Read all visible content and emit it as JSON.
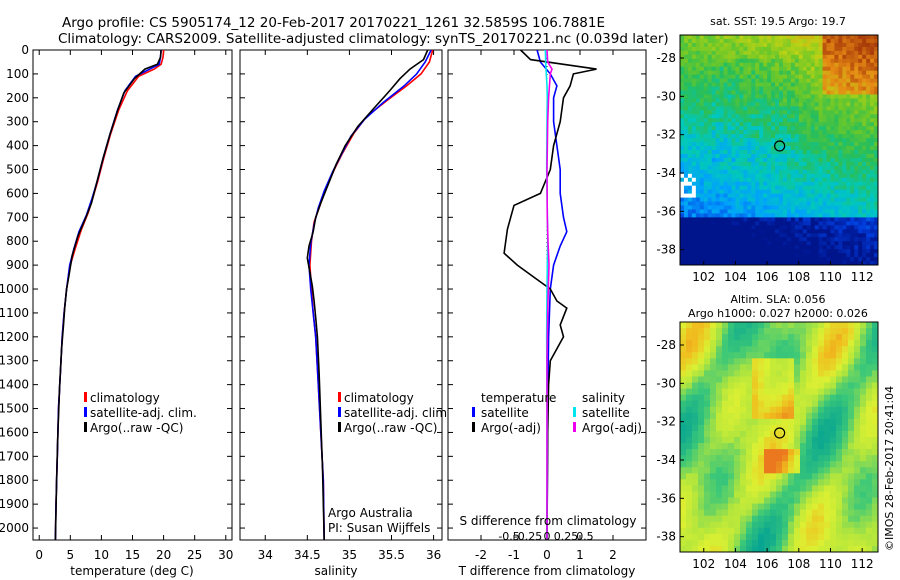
{
  "header": {
    "line1": "Argo profile: CS 5905174_12 20-Feb-2017 20170221_1261 32.5859S 106.7881E",
    "line2": "Climatology: CARS2009. Satellite-adjusted climatology: synTS_20170221.nc (0.039d later)"
  },
  "credits": {
    "institution": "Argo Australia",
    "pi": "PI: Susan Wijffels"
  },
  "watermark": "©IMOS 28-Feb-2017 20:41:04",
  "colors": {
    "climatology": "#ff0000",
    "satellite": "#0000ff",
    "argo": "#000000",
    "sat_salinity": "#00e5ee",
    "argo_adj_salinity": "#ee00ee"
  },
  "chart_data": [
    {
      "type": "line",
      "xlabel": "temperature (deg C)",
      "ylim": [
        2050,
        0
      ],
      "xlim": [
        -1,
        31
      ],
      "xticks": [
        0,
        5,
        10,
        15,
        20,
        25,
        30
      ],
      "yticks": [
        0,
        100,
        200,
        300,
        400,
        500,
        600,
        700,
        800,
        900,
        1000,
        1100,
        1200,
        1300,
        1400,
        1500,
        1600,
        1700,
        1800,
        1900,
        2000
      ],
      "legend": [
        "climatology",
        "satellite-adj. clim.",
        "Argo(..raw -QC)"
      ],
      "legend_placement": "lower-right",
      "series": [
        {
          "name": "climatology",
          "color": "#ff0000",
          "points": [
            [
              20.0,
              0
            ],
            [
              19.9,
              30
            ],
            [
              19.6,
              60
            ],
            [
              18.5,
              80
            ],
            [
              16.0,
              110
            ],
            [
              14.2,
              170
            ],
            [
              12.8,
              250
            ],
            [
              11.5,
              350
            ],
            [
              10.4,
              450
            ],
            [
              9.4,
              550
            ],
            [
              8.6,
              620
            ],
            [
              7.9,
              680
            ],
            [
              6.8,
              750
            ],
            [
              5.8,
              830
            ],
            [
              5.0,
              900
            ],
            [
              4.4,
              1000
            ],
            [
              4.0,
              1100
            ],
            [
              3.7,
              1200
            ],
            [
              3.4,
              1350
            ],
            [
              3.1,
              1500
            ],
            [
              2.9,
              1700
            ],
            [
              2.7,
              1900
            ],
            [
              2.6,
              2050
            ]
          ]
        },
        {
          "name": "satellite-adj. clim.",
          "color": "#0000ff",
          "points": [
            [
              19.6,
              0
            ],
            [
              19.5,
              30
            ],
            [
              19.3,
              60
            ],
            [
              17.8,
              80
            ],
            [
              15.5,
              110
            ],
            [
              13.8,
              170
            ],
            [
              12.6,
              250
            ],
            [
              11.4,
              350
            ],
            [
              10.3,
              450
            ],
            [
              9.3,
              550
            ],
            [
              8.5,
              620
            ],
            [
              7.6,
              690
            ],
            [
              6.4,
              760
            ],
            [
              5.6,
              830
            ],
            [
              4.9,
              900
            ],
            [
              4.4,
              1000
            ],
            [
              4.0,
              1100
            ],
            [
              3.7,
              1200
            ],
            [
              3.4,
              1350
            ],
            [
              3.1,
              1500
            ],
            [
              2.9,
              1700
            ],
            [
              2.7,
              1900
            ],
            [
              2.6,
              2050
            ]
          ]
        },
        {
          "name": "Argo(..raw -QC)",
          "color": "#000000",
          "points": [
            [
              19.6,
              0
            ],
            [
              19.5,
              30
            ],
            [
              19.0,
              60
            ],
            [
              17.0,
              80
            ],
            [
              15.3,
              120
            ],
            [
              13.6,
              180
            ],
            [
              12.5,
              260
            ],
            [
              11.3,
              360
            ],
            [
              10.2,
              460
            ],
            [
              9.2,
              560
            ],
            [
              8.4,
              640
            ],
            [
              7.5,
              700
            ],
            [
              6.2,
              780
            ],
            [
              5.3,
              860
            ],
            [
              4.8,
              940
            ],
            [
              4.4,
              1000
            ],
            [
              4.1,
              1080
            ],
            [
              3.9,
              1150
            ],
            [
              3.6,
              1250
            ],
            [
              3.3,
              1400
            ],
            [
              3.0,
              1600
            ],
            [
              2.8,
              1800
            ],
            [
              2.6,
              2050
            ]
          ]
        }
      ]
    },
    {
      "type": "line",
      "xlabel": "salinity",
      "ylim": [
        2050,
        0
      ],
      "xlim": [
        33.7,
        36.1
      ],
      "xticks": [
        34,
        34.5,
        35,
        35.5,
        36
      ],
      "xtick_labels": [
        "34",
        "34.5",
        "35",
        "35.5",
        "36"
      ],
      "legend": [
        "climatology",
        "satellite-adj. clim.",
        "Argo(..raw -QC)"
      ],
      "legend_placement": "lower-right",
      "series": [
        {
          "name": "climatology",
          "color": "#ff0000",
          "points": [
            [
              35.99,
              0
            ],
            [
              35.95,
              50
            ],
            [
              35.85,
              100
            ],
            [
              35.68,
              150
            ],
            [
              35.45,
              210
            ],
            [
              35.2,
              280
            ],
            [
              35.05,
              350
            ],
            [
              34.92,
              430
            ],
            [
              34.82,
              500
            ],
            [
              34.72,
              580
            ],
            [
              34.65,
              650
            ],
            [
              34.58,
              720
            ],
            [
              34.55,
              800
            ],
            [
              34.53,
              900
            ],
            [
              34.55,
              1000
            ],
            [
              34.57,
              1100
            ],
            [
              34.6,
              1200
            ],
            [
              34.63,
              1400
            ],
            [
              34.66,
              1600
            ],
            [
              34.69,
              1800
            ],
            [
              34.7,
              2050
            ]
          ]
        },
        {
          "name": "satellite-adj. clim.",
          "color": "#0000ff",
          "points": [
            [
              35.97,
              0
            ],
            [
              35.9,
              50
            ],
            [
              35.8,
              100
            ],
            [
              35.65,
              150
            ],
            [
              35.4,
              220
            ],
            [
              35.18,
              290
            ],
            [
              35.02,
              360
            ],
            [
              34.9,
              440
            ],
            [
              34.8,
              510
            ],
            [
              34.7,
              590
            ],
            [
              34.63,
              660
            ],
            [
              34.58,
              730
            ],
            [
              34.54,
              810
            ],
            [
              34.52,
              900
            ],
            [
              34.54,
              1000
            ],
            [
              34.57,
              1100
            ],
            [
              34.6,
              1200
            ],
            [
              34.63,
              1400
            ],
            [
              34.66,
              1600
            ],
            [
              34.69,
              1800
            ],
            [
              34.7,
              2050
            ]
          ]
        },
        {
          "name": "Argo(..raw -QC)",
          "color": "#000000",
          "points": [
            [
              35.93,
              0
            ],
            [
              35.88,
              40
            ],
            [
              35.72,
              80
            ],
            [
              35.6,
              120
            ],
            [
              35.48,
              170
            ],
            [
              35.3,
              240
            ],
            [
              35.1,
              320
            ],
            [
              34.95,
              400
            ],
            [
              34.84,
              480
            ],
            [
              34.75,
              560
            ],
            [
              34.66,
              640
            ],
            [
              34.6,
              700
            ],
            [
              34.57,
              760
            ],
            [
              34.52,
              820
            ],
            [
              34.5,
              870
            ],
            [
              34.53,
              930
            ],
            [
              34.56,
              990
            ],
            [
              34.58,
              1050
            ],
            [
              34.6,
              1120
            ],
            [
              34.62,
              1200
            ],
            [
              34.64,
              1350
            ],
            [
              34.66,
              1550
            ],
            [
              34.68,
              1750
            ],
            [
              34.7,
              2050
            ]
          ]
        }
      ]
    },
    {
      "type": "line",
      "xlabel": "T difference from climatology",
      "xlabel_top": "S difference from climatology",
      "ylim": [
        2050,
        0
      ],
      "xlim": [
        -3,
        3
      ],
      "xticks": [
        -2,
        -1,
        0,
        1,
        2
      ],
      "xtick_labels": [
        "-2",
        "-1",
        "0",
        "1",
        "2"
      ],
      "sticks": [
        -0.5,
        -0.25,
        0,
        0.25,
        0.5
      ],
      "stick_labels": [
        "-0.5",
        "-0.25",
        "0",
        "0.25",
        "0.5"
      ],
      "legend_temperature": {
        "title": "temperature",
        "items": [
          "satellite",
          "Argo(-adj)"
        ]
      },
      "legend_salinity": {
        "title": "salinity",
        "items": [
          "satellite",
          "Argo(-adj)"
        ]
      },
      "legend_placement": "lower",
      "series": [
        {
          "name": "temperature satellite",
          "color": "#0000ff",
          "points": [
            [
              -0.3,
              0
            ],
            [
              -0.2,
              50
            ],
            [
              0.1,
              100
            ],
            [
              0.3,
              150
            ],
            [
              0.2,
              200
            ],
            [
              0.2,
              300
            ],
            [
              0.3,
              400
            ],
            [
              0.4,
              500
            ],
            [
              0.4,
              600
            ],
            [
              0.5,
              700
            ],
            [
              0.6,
              760
            ],
            [
              0.4,
              820
            ],
            [
              0.2,
              900
            ],
            [
              0.1,
              1000
            ],
            [
              0.05,
              1200
            ],
            [
              0.02,
              1500
            ],
            [
              0.0,
              2050
            ]
          ]
        },
        {
          "name": "temperature Argo(-adj)",
          "color": "#000000",
          "points": [
            [
              -0.8,
              0
            ],
            [
              -0.5,
              40
            ],
            [
              1.5,
              80
            ],
            [
              0.8,
              100
            ],
            [
              0.7,
              150
            ],
            [
              0.5,
              200
            ],
            [
              0.4,
              300
            ],
            [
              0.2,
              400
            ],
            [
              0.1,
              500
            ],
            [
              -0.2,
              600
            ],
            [
              -1.0,
              650
            ],
            [
              -1.1,
              700
            ],
            [
              -1.2,
              750
            ],
            [
              -1.3,
              850
            ],
            [
              -0.9,
              900
            ],
            [
              -0.4,
              950
            ],
            [
              0.1,
              1000
            ],
            [
              0.3,
              1050
            ],
            [
              0.6,
              1080
            ],
            [
              0.4,
              1150
            ],
            [
              0.5,
              1200
            ],
            [
              0.3,
              1250
            ],
            [
              0.1,
              1300
            ],
            [
              0.05,
              1400
            ],
            [
              0.02,
              1600
            ],
            [
              0.0,
              2050
            ]
          ]
        },
        {
          "name": "salinity satellite",
          "color": "#00e5ee",
          "points": [
            [
              -0.05,
              0
            ],
            [
              -0.04,
              50
            ],
            [
              -0.02,
              100
            ],
            [
              0.0,
              150
            ],
            [
              0.01,
              200
            ],
            [
              0.0,
              300
            ],
            [
              -0.01,
              500
            ],
            [
              0.02,
              800
            ],
            [
              0.0,
              1000
            ],
            [
              -0.01,
              1200
            ],
            [
              0.0,
              1500
            ],
            [
              0.0,
              2050
            ]
          ]
        },
        {
          "name": "salinity Argo(-adj)",
          "color": "#ee00ee",
          "points": [
            [
              0.0,
              0
            ],
            [
              0.02,
              50
            ],
            [
              0.15,
              80
            ],
            [
              0.1,
              100
            ],
            [
              0.05,
              200
            ],
            [
              0.02,
              300
            ],
            [
              0.0,
              500
            ],
            [
              0.01,
              700
            ],
            [
              0.03,
              800
            ],
            [
              0.06,
              900
            ],
            [
              0.04,
              1000
            ],
            [
              0.02,
              1100
            ],
            [
              0.0,
              1300
            ],
            [
              0.0,
              2050
            ]
          ]
        }
      ]
    },
    {
      "type": "heatmap",
      "title": "sat. SST: 19.5 Argo: 19.7",
      "xlim": [
        100.5,
        113
      ],
      "ylim": [
        -38.8,
        -26.8
      ],
      "xticks": [
        102,
        104,
        106,
        108,
        110,
        112
      ],
      "yticks": [
        -28,
        -30,
        -32,
        -34,
        -36,
        -38
      ],
      "ytick_labels": [
        "-28",
        "-30",
        "-32",
        "-34",
        "-36",
        "-38"
      ],
      "marker": [
        106.79,
        -32.59
      ]
    },
    {
      "type": "heatmap",
      "title": "Altim. SLA: 0.056",
      "subtitle": "Argo h1000: 0.027 h2000: 0.026",
      "xlim": [
        100.5,
        113
      ],
      "ylim": [
        -38.8,
        -26.8
      ],
      "xticks": [
        102,
        104,
        106,
        108,
        110,
        112
      ],
      "yticks": [
        -28,
        -30,
        -32,
        -34,
        -36,
        -38
      ],
      "ytick_labels": [
        "-28",
        "-30",
        "-32",
        "-34",
        "-36",
        "-38"
      ],
      "marker": [
        106.79,
        -32.59
      ]
    }
  ]
}
